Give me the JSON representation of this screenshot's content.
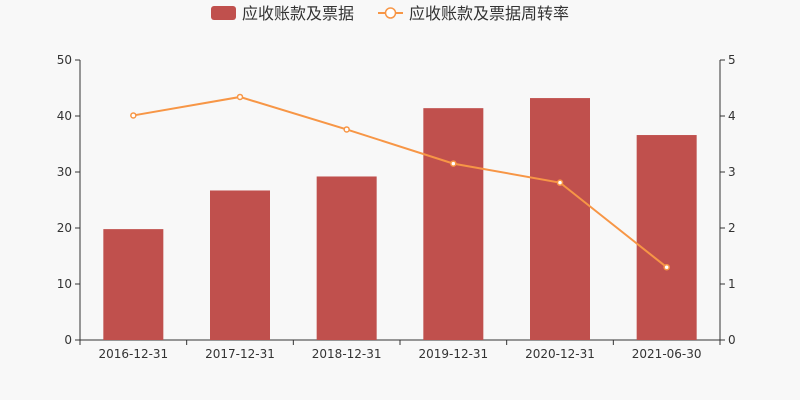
{
  "chart_data": {
    "type": "bar",
    "categories": [
      "2016-12-31",
      "2017-12-31",
      "2018-12-31",
      "2019-12-31",
      "2020-12-31",
      "2021-06-30"
    ],
    "series": [
      {
        "name": "应收账款及票据",
        "type": "bar",
        "axis": "left",
        "color": "#c0504d",
        "values": [
          19.8,
          26.7,
          29.2,
          41.4,
          43.2,
          36.6
        ]
      },
      {
        "name": "应收账款及票据周转率",
        "type": "line",
        "axis": "right",
        "color": "#f79646",
        "values": [
          4.01,
          4.34,
          3.76,
          3.15,
          2.81,
          1.3
        ]
      }
    ],
    "y_left": {
      "min": 0,
      "max": 50,
      "ticks": [
        "0",
        "10",
        "20",
        "30",
        "40",
        "50"
      ]
    },
    "y_right": {
      "min": 0,
      "max": 5,
      "ticks": [
        "0",
        "1",
        "2",
        "3",
        "4",
        "5"
      ]
    },
    "legend_position": "top-center",
    "grid": false
  }
}
